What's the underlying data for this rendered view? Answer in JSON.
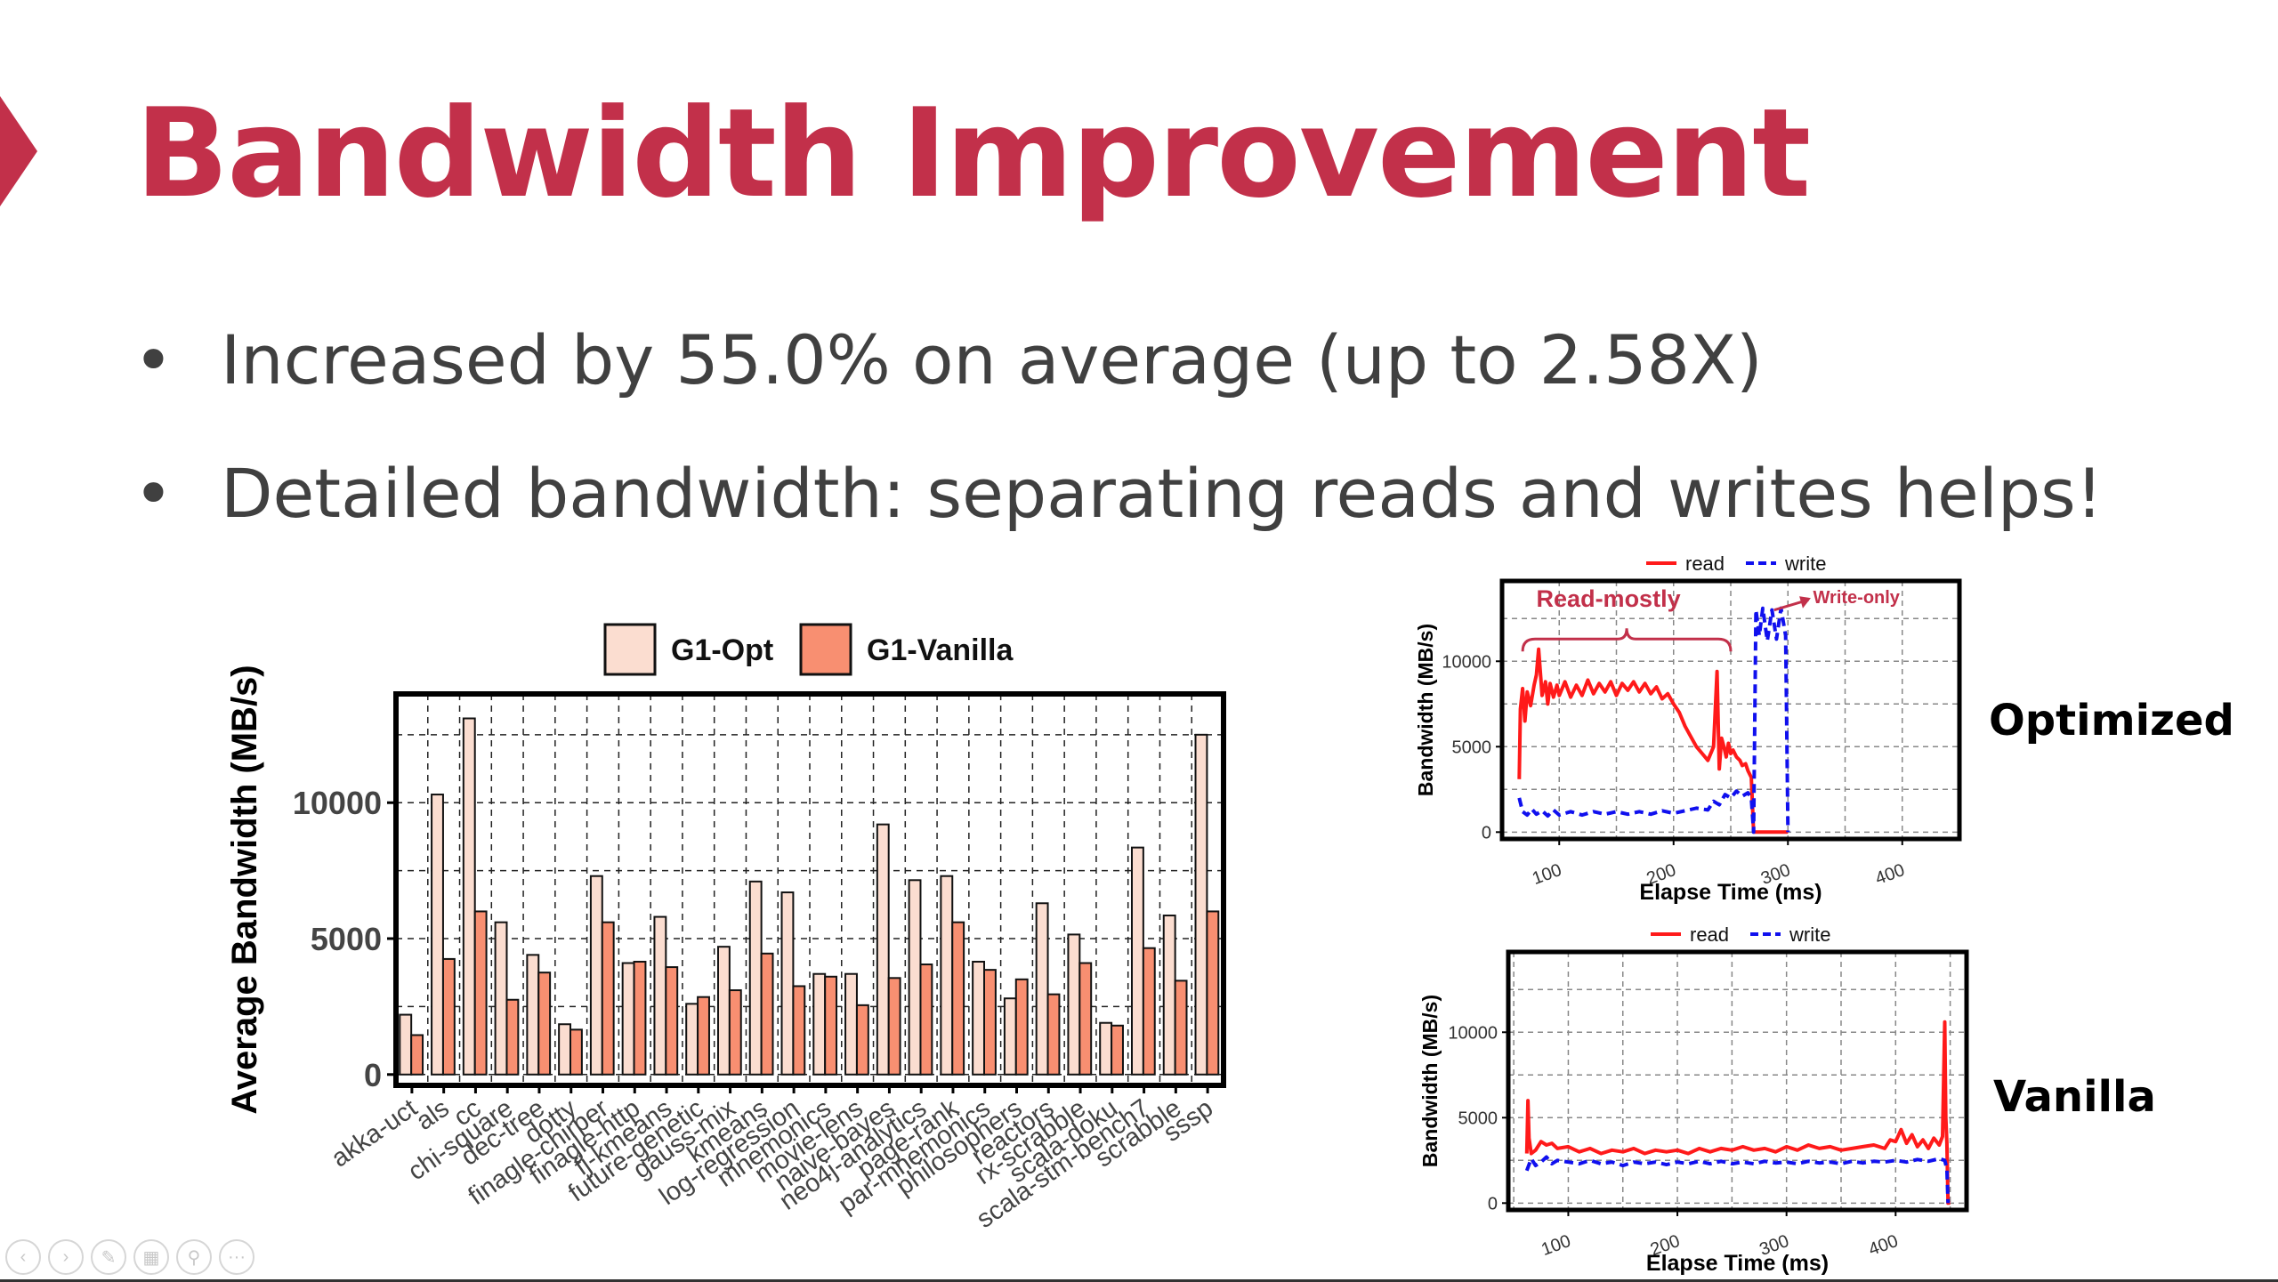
{
  "slide": {
    "title": "Bandwidth Improvement",
    "bullets": [
      "Increased by 55.0% on average (up to 2.58X)",
      "Detailed bandwidth: separating reads and writes helps!"
    ],
    "bullet_symbol": "•",
    "label_optimized": "Optimized",
    "label_vanilla": "Vanilla",
    "accent_color": "#c2304a"
  },
  "toolbar": {
    "icons": [
      "prev-icon",
      "next-icon",
      "pen-icon",
      "slides-icon",
      "zoom-icon",
      "more-icon"
    ],
    "glyphs": [
      "‹",
      "›",
      "✎",
      "▦",
      "⚲",
      "···"
    ]
  },
  "chart_data": [
    {
      "type": "bar",
      "ylabel": "Average Bandwidth (MB/s)",
      "ylim": [
        -400,
        14000
      ],
      "yticks": [
        0,
        5000,
        10000
      ],
      "legend_position": "top",
      "grid": true,
      "categories": [
        "akka-uct",
        "als",
        "cc",
        "chi-square",
        "dec-tree",
        "dotty",
        "finagle-chirper",
        "finagle-http",
        "fj-kmeans",
        "future-genetic",
        "gauss-mix",
        "kmeans",
        "log-regression",
        "mnemonics",
        "movie-lens",
        "naive-bayes",
        "neo4j-analytics",
        "page-rank",
        "par-mnemonics",
        "philosophers",
        "reactors",
        "rx-scrabble",
        "scala-doku",
        "scala-stm-bench7",
        "scrabble",
        "sssp"
      ],
      "series": [
        {
          "name": "G1-Opt",
          "color": "#fbddd0",
          "values": [
            2200,
            10300,
            13100,
            5600,
            4400,
            1850,
            7300,
            4100,
            5800,
            2600,
            4700,
            7100,
            6700,
            3700,
            3700,
            9200,
            7150,
            7300,
            4150,
            2800,
            6300,
            5150,
            1900,
            8350,
            5850,
            12500
          ]
        },
        {
          "name": "G1-Vanilla",
          "color": "#f88f71",
          "values": [
            1450,
            4250,
            6000,
            2750,
            3750,
            1650,
            5600,
            4150,
            3950,
            2850,
            3100,
            4450,
            3250,
            3600,
            2550,
            3550,
            4050,
            5600,
            3850,
            3500,
            2950,
            4100,
            1800,
            4650,
            3450,
            6000
          ]
        }
      ]
    },
    {
      "type": "line",
      "xlabel": "Elapse Time (ms)",
      "ylabel": "Bandwidth (MB/s)",
      "xlim": [
        50,
        450
      ],
      "ylim": [
        -400,
        14700
      ],
      "xticks": [
        100,
        200,
        300,
        400
      ],
      "yticks": [
        0,
        5000,
        10000
      ],
      "legend_position": "top",
      "grid": true,
      "annotations": [
        "Read-mostly",
        "Write-only"
      ],
      "series": [
        {
          "name": "read",
          "color": "#ff1a1a",
          "style": "solid",
          "x": [
            65,
            66,
            68,
            70,
            72,
            75,
            78,
            80,
            82,
            85,
            88,
            90,
            92,
            95,
            98,
            100,
            105,
            110,
            115,
            120,
            125,
            130,
            135,
            140,
            145,
            150,
            155,
            160,
            165,
            170,
            175,
            180,
            185,
            190,
            195,
            200,
            205,
            210,
            215,
            220,
            225,
            230,
            235,
            238,
            240,
            242,
            244,
            246,
            248,
            250,
            252,
            255,
            258,
            260,
            263,
            265,
            268,
            270,
            280,
            290,
            300
          ],
          "y": [
            3100,
            7200,
            8400,
            6500,
            8200,
            7400,
            8600,
            9200,
            10700,
            8000,
            8800,
            7500,
            8700,
            7900,
            8600,
            8000,
            8800,
            7900,
            8600,
            8000,
            8900,
            8100,
            8700,
            8200,
            8800,
            8000,
            8700,
            8300,
            8800,
            8200,
            8700,
            8100,
            8500,
            7800,
            8100,
            7500,
            7000,
            6200,
            5600,
            5000,
            4600,
            4200,
            5000,
            9400,
            3700,
            5500,
            5000,
            4400,
            5200,
            4600,
            4800,
            4400,
            4200,
            3900,
            4000,
            3600,
            3200,
            0,
            0,
            0,
            0
          ]
        },
        {
          "name": "write",
          "color": "#1010ee",
          "style": "dashed",
          "x": [
            65,
            68,
            72,
            76,
            80,
            85,
            90,
            95,
            100,
            110,
            120,
            130,
            140,
            150,
            160,
            170,
            180,
            190,
            200,
            210,
            220,
            230,
            235,
            240,
            245,
            250,
            255,
            260,
            265,
            268,
            270,
            272,
            275,
            278,
            282,
            286,
            290,
            294,
            298,
            300
          ],
          "y": [
            2000,
            1200,
            1000,
            1350,
            1050,
            1250,
            950,
            1300,
            1000,
            1200,
            1000,
            1200,
            1050,
            1200,
            1050,
            1200,
            1050,
            1250,
            1100,
            1250,
            1400,
            1300,
            1800,
            1600,
            2200,
            2000,
            2400,
            2100,
            2300,
            2000,
            0,
            13000,
            11500,
            13100,
            11200,
            13000,
            11300,
            13100,
            11500,
            0
          ]
        }
      ]
    },
    {
      "type": "line",
      "xlabel": "Elapse Time (ms)",
      "ylabel": "Bandwidth (MB/s)",
      "xlim": [
        45,
        465
      ],
      "ylim": [
        -400,
        14700
      ],
      "xticks": [
        100,
        200,
        300,
        400
      ],
      "yticks": [
        0,
        5000,
        10000
      ],
      "legend_position": "top",
      "grid": true,
      "series": [
        {
          "name": "read",
          "color": "#ff1a1a",
          "style": "solid",
          "x": [
            62,
            63,
            64,
            66,
            70,
            75,
            80,
            85,
            90,
            100,
            110,
            120,
            130,
            140,
            150,
            160,
            170,
            180,
            190,
            200,
            210,
            220,
            230,
            240,
            250,
            260,
            270,
            280,
            290,
            300,
            310,
            320,
            330,
            340,
            350,
            360,
            370,
            380,
            390,
            395,
            400,
            405,
            410,
            415,
            420,
            425,
            430,
            435,
            440,
            443,
            445,
            446,
            447,
            448,
            450
          ],
          "y": [
            2900,
            6000,
            3800,
            2900,
            3100,
            3600,
            3400,
            3500,
            3200,
            3300,
            3000,
            3200,
            2900,
            3100,
            3000,
            3200,
            2900,
            3100,
            3000,
            3100,
            2900,
            3200,
            3000,
            3200,
            3100,
            3300,
            3100,
            3200,
            3000,
            3300,
            3100,
            3400,
            3200,
            3300,
            3100,
            3200,
            3300,
            3400,
            3200,
            3700,
            3600,
            4300,
            3500,
            4000,
            3300,
            3700,
            3200,
            3800,
            3400,
            3900,
            10600,
            5000,
            3500,
            0,
            0
          ]
        },
        {
          "name": "write",
          "color": "#1010ee",
          "style": "dashed",
          "x": [
            62,
            66,
            70,
            75,
            80,
            85,
            90,
            100,
            110,
            120,
            130,
            140,
            150,
            160,
            170,
            180,
            190,
            200,
            210,
            220,
            230,
            240,
            250,
            260,
            270,
            280,
            290,
            300,
            310,
            320,
            330,
            340,
            350,
            360,
            370,
            380,
            390,
            400,
            410,
            420,
            430,
            440,
            445,
            447,
            448
          ],
          "y": [
            1900,
            2600,
            2200,
            2400,
            2700,
            2300,
            2500,
            2400,
            2300,
            2500,
            2300,
            2400,
            2200,
            2400,
            2300,
            2400,
            2250,
            2400,
            2300,
            2450,
            2300,
            2450,
            2300,
            2400,
            2300,
            2450,
            2350,
            2400,
            2300,
            2450,
            2350,
            2400,
            2300,
            2450,
            2350,
            2450,
            2400,
            2500,
            2400,
            2550,
            2450,
            2600,
            2500,
            2000,
            0
          ]
        }
      ]
    }
  ]
}
